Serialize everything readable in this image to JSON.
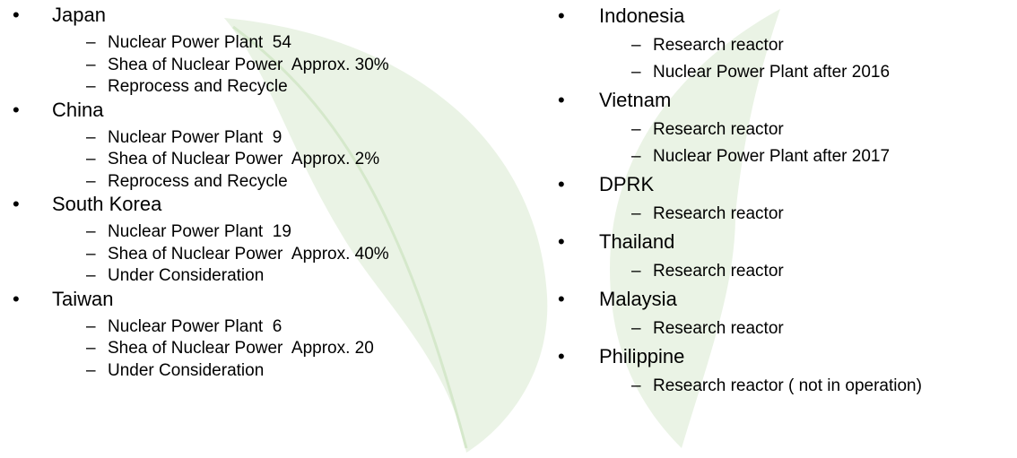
{
  "columns": [
    [
      {
        "name": "Japan",
        "items": [
          "Nuclear Power Plant  54",
          "Shea of Nuclear Power  Approx. 30%",
          "Reprocess and Recycle"
        ]
      },
      {
        "name": "China",
        "items": [
          "Nuclear Power Plant  9",
          "Shea of Nuclear Power  Approx. 2%",
          "Reprocess and Recycle"
        ]
      },
      {
        "name": "South Korea",
        "items": [
          "Nuclear Power Plant  19",
          "Shea of Nuclear Power  Approx. 40%",
          "Under Consideration"
        ]
      },
      {
        "name": "Taiwan",
        "items": [
          "Nuclear Power Plant  6",
          "Shea of Nuclear Power  Approx. 20",
          "Under Consideration"
        ]
      }
    ],
    [
      {
        "name": "Indonesia",
        "items": [
          "Research reactor",
          "Nuclear Power Plant after 2016"
        ]
      },
      {
        "name": "Vietnam",
        "items": [
          "Research reactor",
          "Nuclear Power Plant after 2017"
        ]
      },
      {
        "name": "DPRK",
        "items": [
          "Research reactor"
        ]
      },
      {
        "name": "Thailand",
        "items": [
          "Research reactor"
        ]
      },
      {
        "name": "Malaysia",
        "items": [
          "Research reactor"
        ]
      },
      {
        "name": "Philippine",
        "items": [
          "Research reactor ( not in operation)"
        ]
      }
    ]
  ]
}
